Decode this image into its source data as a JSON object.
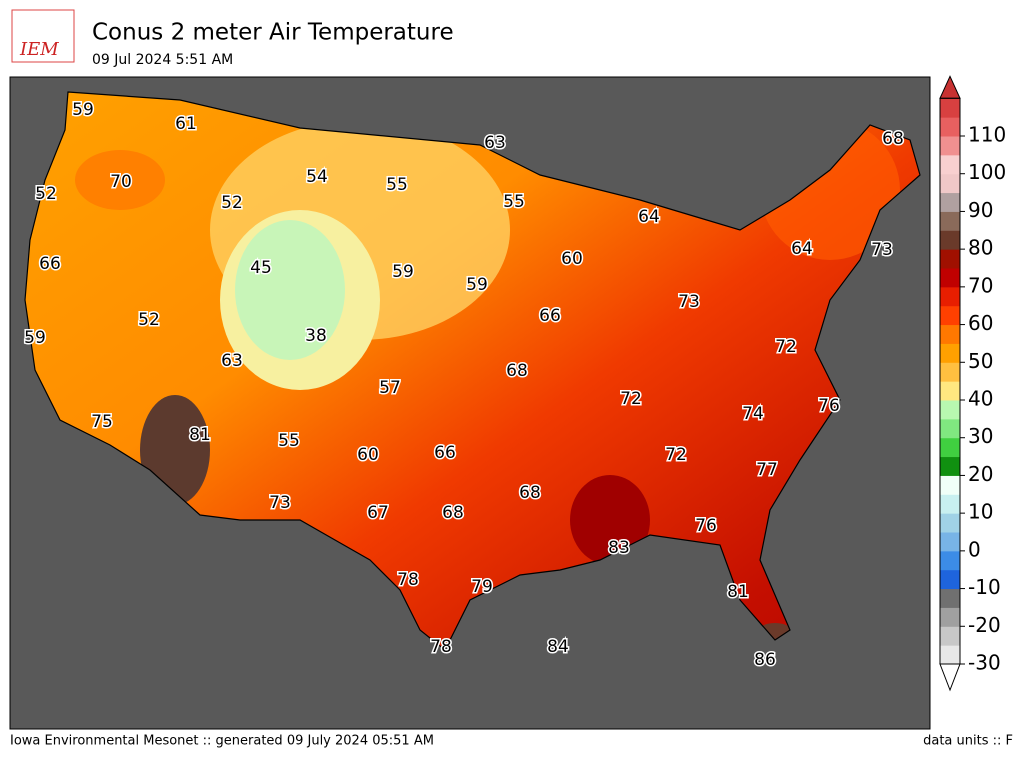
{
  "header": {
    "logo": "IEM",
    "title": "Conus 2 meter Air Temperature",
    "subtitle": "09 Jul 2024 5:51 AM"
  },
  "stations": [
    59,
    61,
    63,
    68,
    70,
    54,
    55,
    52,
    52,
    55,
    64,
    64,
    73,
    66,
    45,
    59,
    59,
    60,
    52,
    38,
    66,
    73,
    59,
    63,
    72,
    68,
    57,
    72,
    74,
    76,
    75,
    81,
    55,
    60,
    66,
    72,
    77,
    68,
    73,
    67,
    68,
    76,
    83,
    78,
    79,
    81,
    78,
    84,
    86
  ],
  "colorbar": {
    "ticks": [
      -30,
      -20,
      -10,
      0,
      10,
      20,
      30,
      40,
      50,
      60,
      70,
      80,
      90,
      100,
      110
    ]
  },
  "footer": {
    "left": "Iowa Environmental Mesonet :: generated 09 July 2024 05:51 AM",
    "right": "data units :: F"
  }
}
